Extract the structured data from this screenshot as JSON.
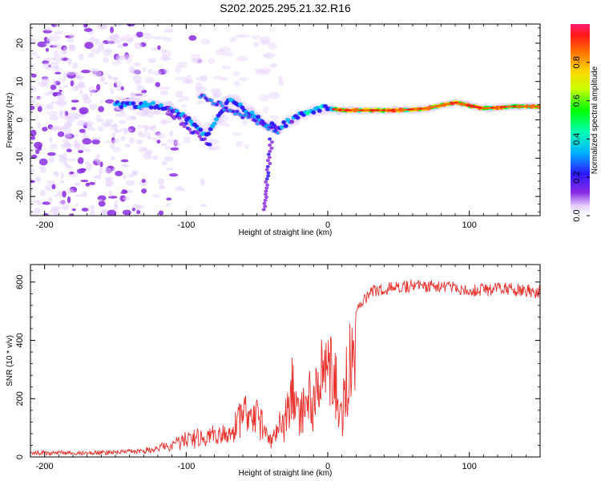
{
  "title": "S202.2025.295.21.32.R16",
  "chart_data": [
    {
      "type": "heatmap",
      "name": "spectrogram",
      "xlabel": "Height of straight line (km)",
      "ylabel": "Frequency (Hz)",
      "xlim": [
        -210,
        150
      ],
      "ylim": [
        -25,
        25
      ],
      "xticks": [
        -200,
        -100,
        0,
        100
      ],
      "xtick_labels": [
        "-200",
        "-100",
        "0",
        "100"
      ],
      "yticks": [
        -20,
        -10,
        0,
        10,
        20
      ],
      "ytick_labels": [
        "-20",
        "-10",
        "0",
        "10",
        "20"
      ],
      "ridge": {
        "description_x": [
          -150,
          -130,
          -110,
          -95,
          -85,
          -70,
          -55,
          -45,
          -35,
          -25,
          -15,
          -5,
          0,
          10,
          30,
          50,
          70,
          90,
          110,
          130,
          150
        ],
        "frequency_hz": [
          4,
          4,
          3,
          -1,
          -4,
          5,
          2,
          -1,
          -2,
          0,
          2,
          3,
          3,
          2.5,
          2.5,
          2.5,
          3,
          4.5,
          3,
          3.5,
          3.5
        ]
      },
      "colorbar": {
        "label": "Normalized spectral amplitude",
        "range": [
          0,
          1
        ],
        "ticks": [
          0.0,
          0.2,
          0.4,
          0.6,
          0.8
        ],
        "tick_labels": [
          "0.0",
          "0.2",
          "0.4",
          "0.6",
          "0.8"
        ]
      }
    },
    {
      "type": "line",
      "name": "snr",
      "xlabel": "Height of straight line (km)",
      "ylabel": "SNR (10 * v/v)",
      "xlim": [
        -210,
        150
      ],
      "ylim": [
        0,
        660
      ],
      "xticks": [
        -200,
        -100,
        0,
        100
      ],
      "xtick_labels": [
        "-200",
        "-100",
        "0",
        "100"
      ],
      "yticks": [
        0,
        200,
        400,
        600
      ],
      "ytick_labels": [
        "0",
        "200",
        "400",
        "600"
      ],
      "color": "#e8332f",
      "envelope": {
        "x": [
          -210,
          -160,
          -130,
          -110,
          -100,
          -90,
          -70,
          -60,
          -50,
          -40,
          -30,
          -25,
          -20,
          -15,
          -10,
          -5,
          0,
          5,
          10,
          15,
          20,
          30,
          40,
          60,
          80,
          100,
          120,
          150
        ],
        "y": [
          20,
          20,
          30,
          60,
          80,
          100,
          100,
          200,
          200,
          80,
          180,
          320,
          220,
          300,
          260,
          380,
          420,
          350,
          200,
          450,
          520,
          590,
          600,
          610,
          610,
          590,
          600,
          590
        ]
      }
    }
  ]
}
